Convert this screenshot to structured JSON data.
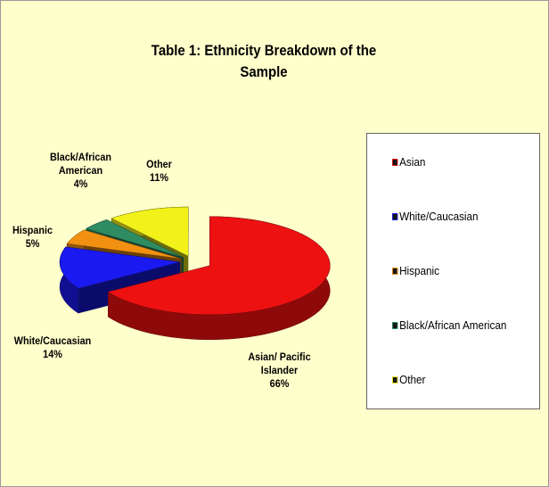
{
  "chart_data": {
    "type": "pie3d",
    "title": "Table 1: Ethnicity Breakdown of the Sample",
    "categories": [
      "Asian",
      "White/Caucasian",
      "Hispanic",
      "Black/African American",
      "Other"
    ],
    "data_label_names": [
      "Asian/ Pacific Islander",
      "White/Caucasian",
      "Hispanic",
      "Black/African American",
      "Other"
    ],
    "values": [
      66,
      14,
      5,
      4,
      11
    ],
    "value_labels": [
      "66%",
      "14%",
      "5%",
      "4%",
      "11%"
    ],
    "colors": [
      "#ee1111",
      "#1a1af0",
      "#f29011",
      "#2e8b62",
      "#f2f21a"
    ],
    "legend_marker_color": "#151515",
    "legend": "right"
  }
}
